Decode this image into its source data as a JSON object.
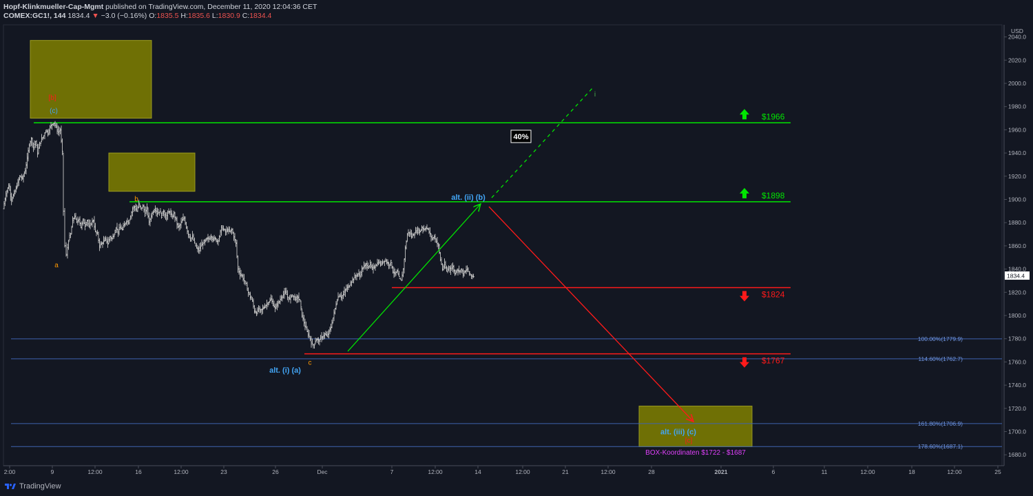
{
  "header": {
    "author": "Hopf-Klinkmueller-Cap-Mgmt",
    "published": "published on TradingView.com, December 11, 2020 12:04:36 CET",
    "symbol": "COMEX:GC1!, 144",
    "last": "1834.4",
    "change": "−3.0 (−0.16%)",
    "o_label": "O:",
    "o": "1835.5",
    "h_label": "H:",
    "h": "1835.6",
    "l_label": "L:",
    "l": "1830.9",
    "c_label": "C:",
    "c": "1834.4"
  },
  "footer": {
    "brand": "TradingView"
  },
  "colors": {
    "background": "#131722",
    "bar": "#c8c8c8",
    "green": "#4caf50",
    "bright_green": "#00e600",
    "red": "#ff1a1a",
    "box": "#808000",
    "blue_label": "#42a5f5",
    "orange": "#ff9800",
    "magenta": "#e040fb",
    "fib_line": "#3f63b0"
  },
  "chart_data": {
    "type": "ohlc",
    "currency": "USD",
    "last_price_label": "1834.4",
    "y_ticks": [
      1680,
      1700,
      1720,
      1740,
      1760,
      1780,
      1800,
      1820,
      1840,
      1860,
      1880,
      1900,
      1920,
      1940,
      1960,
      1980,
      2000,
      2020,
      2040
    ],
    "y_tick_labels": [
      "1680.0",
      "1700.0",
      "1720.0",
      "1740.0",
      "1760.0",
      "1780.0",
      "1800.0",
      "1820.0",
      "1840.0",
      "1860.0",
      "1880.0",
      "1900.0",
      "1920.0",
      "1940.0",
      "1960.0",
      "1980.0",
      "2000.0",
      "2020.0",
      "2040.0"
    ],
    "x_tick_labels": [
      "2:00",
      "9",
      "12:00",
      "16",
      "12:00",
      "23",
      "26",
      "Dec",
      "7",
      "12:00",
      "14",
      "12:00",
      "21",
      "12:00",
      "28",
      "2021",
      "6",
      "11",
      "12:00",
      "18",
      "12:00",
      "25"
    ],
    "price_path": [
      [
        0,
        1892
      ],
      [
        4,
        1905
      ],
      [
        8,
        1912
      ],
      [
        12,
        1900
      ],
      [
        16,
        1905
      ],
      [
        20,
        1912
      ],
      [
        24,
        1920
      ],
      [
        28,
        1918
      ],
      [
        32,
        1925
      ],
      [
        35,
        1935
      ],
      [
        38,
        1948
      ],
      [
        41,
        1952
      ],
      [
        44,
        1945
      ],
      [
        47,
        1950
      ],
      [
        50,
        1940
      ],
      [
        53,
        1948
      ],
      [
        56,
        1952
      ],
      [
        59,
        1955
      ],
      [
        62,
        1960
      ],
      [
        65,
        1957
      ],
      [
        68,
        1962
      ],
      [
        71,
        1965
      ],
      [
        74,
        1966
      ],
      [
        77,
        1962
      ],
      [
        80,
        1958
      ],
      [
        83,
        1960
      ],
      [
        86,
        1940
      ],
      [
        88,
        1890
      ],
      [
        90,
        1860
      ],
      [
        92,
        1852
      ],
      [
        95,
        1865
      ],
      [
        98,
        1870
      ],
      [
        101,
        1882
      ],
      [
        104,
        1886
      ],
      [
        107,
        1880
      ],
      [
        110,
        1884
      ],
      [
        113,
        1876
      ],
      [
        116,
        1882
      ],
      [
        119,
        1878
      ],
      [
        122,
        1882
      ],
      [
        125,
        1876
      ],
      [
        128,
        1880
      ],
      [
        131,
        1882
      ],
      [
        134,
        1872
      ],
      [
        137,
        1870
      ],
      [
        140,
        1860
      ],
      [
        143,
        1862
      ],
      [
        146,
        1864
      ],
      [
        149,
        1866
      ],
      [
        152,
        1862
      ],
      [
        155,
        1868
      ],
      [
        158,
        1866
      ],
      [
        161,
        1870
      ],
      [
        164,
        1876
      ],
      [
        167,
        1872
      ],
      [
        170,
        1876
      ],
      [
        173,
        1874
      ],
      [
        176,
        1878
      ],
      [
        179,
        1882
      ],
      [
        182,
        1880
      ],
      [
        185,
        1886
      ],
      [
        188,
        1892
      ],
      [
        191,
        1894
      ],
      [
        194,
        1890
      ],
      [
        197,
        1896
      ],
      [
        200,
        1892
      ],
      [
        203,
        1894
      ],
      [
        206,
        1888
      ],
      [
        209,
        1892
      ],
      [
        212,
        1880
      ],
      [
        215,
        1886
      ],
      [
        218,
        1890
      ],
      [
        221,
        1892
      ],
      [
        224,
        1888
      ],
      [
        227,
        1890
      ],
      [
        230,
        1886
      ],
      [
        233,
        1890
      ],
      [
        236,
        1884
      ],
      [
        239,
        1888
      ],
      [
        242,
        1890
      ],
      [
        245,
        1884
      ],
      [
        248,
        1888
      ],
      [
        251,
        1882
      ],
      [
        254,
        1876
      ],
      [
        257,
        1878
      ],
      [
        260,
        1882
      ],
      [
        263,
        1884
      ],
      [
        266,
        1876
      ],
      [
        269,
        1870
      ],
      [
        272,
        1866
      ],
      [
        275,
        1868
      ],
      [
        278,
        1862
      ],
      [
        281,
        1858
      ],
      [
        284,
        1856
      ],
      [
        287,
        1860
      ],
      [
        290,
        1862
      ],
      [
        293,
        1864
      ],
      [
        296,
        1866
      ],
      [
        299,
        1866
      ],
      [
        302,
        1868
      ],
      [
        305,
        1866
      ],
      [
        308,
        1866
      ],
      [
        311,
        1864
      ],
      [
        314,
        1868
      ],
      [
        317,
        1876
      ],
      [
        320,
        1874
      ],
      [
        323,
        1872
      ],
      [
        326,
        1874
      ],
      [
        329,
        1872
      ],
      [
        332,
        1874
      ],
      [
        335,
        1868
      ],
      [
        338,
        1862
      ],
      [
        341,
        1840
      ],
      [
        344,
        1836
      ],
      [
        347,
        1834
      ],
      [
        350,
        1830
      ],
      [
        353,
        1826
      ],
      [
        356,
        1820
      ],
      [
        359,
        1816
      ],
      [
        362,
        1812
      ],
      [
        365,
        1804
      ],
      [
        368,
        1802
      ],
      [
        371,
        1806
      ],
      [
        374,
        1804
      ],
      [
        377,
        1806
      ],
      [
        380,
        1808
      ],
      [
        383,
        1810
      ],
      [
        386,
        1812
      ],
      [
        389,
        1814
      ],
      [
        392,
        1810
      ],
      [
        395,
        1806
      ],
      [
        398,
        1810
      ],
      [
        401,
        1812
      ],
      [
        404,
        1816
      ],
      [
        407,
        1818
      ],
      [
        410,
        1820
      ],
      [
        413,
        1816
      ],
      [
        416,
        1814
      ],
      [
        419,
        1818
      ],
      [
        422,
        1816
      ],
      [
        425,
        1814
      ],
      [
        428,
        1816
      ],
      [
        431,
        1812
      ],
      [
        434,
        1800
      ],
      [
        437,
        1794
      ],
      [
        440,
        1788
      ],
      [
        443,
        1784
      ],
      [
        446,
        1780
      ],
      [
        449,
        1774
      ],
      [
        452,
        1776
      ],
      [
        455,
        1780
      ],
      [
        458,
        1778
      ],
      [
        461,
        1780
      ],
      [
        464,
        1782
      ],
      [
        467,
        1784
      ],
      [
        470,
        1782
      ],
      [
        473,
        1786
      ],
      [
        476,
        1790
      ],
      [
        479,
        1798
      ],
      [
        482,
        1806
      ],
      [
        485,
        1814
      ],
      [
        488,
        1818
      ],
      [
        491,
        1816
      ],
      [
        494,
        1818
      ],
      [
        497,
        1822
      ],
      [
        500,
        1824
      ],
      [
        503,
        1826
      ],
      [
        506,
        1830
      ],
      [
        509,
        1832
      ],
      [
        512,
        1834
      ],
      [
        515,
        1836
      ],
      [
        518,
        1834
      ],
      [
        521,
        1840
      ],
      [
        524,
        1842
      ],
      [
        527,
        1844
      ],
      [
        530,
        1842
      ],
      [
        533,
        1844
      ],
      [
        536,
        1840
      ],
      [
        539,
        1842
      ],
      [
        542,
        1844
      ],
      [
        545,
        1846
      ],
      [
        548,
        1844
      ],
      [
        551,
        1846
      ],
      [
        554,
        1848
      ],
      [
        557,
        1846
      ],
      [
        560,
        1844
      ],
      [
        563,
        1846
      ],
      [
        566,
        1838
      ],
      [
        569,
        1836
      ],
      [
        572,
        1838
      ],
      [
        575,
        1832
      ],
      [
        578,
        1830
      ],
      [
        581,
        1840
      ],
      [
        584,
        1858
      ],
      [
        587,
        1870
      ],
      [
        590,
        1872
      ],
      [
        593,
        1868
      ],
      [
        596,
        1870
      ],
      [
        599,
        1872
      ],
      [
        602,
        1874
      ],
      [
        605,
        1872
      ],
      [
        608,
        1876
      ],
      [
        611,
        1874
      ],
      [
        614,
        1876
      ],
      [
        617,
        1874
      ],
      [
        620,
        1870
      ],
      [
        623,
        1866
      ],
      [
        626,
        1868
      ],
      [
        629,
        1864
      ],
      [
        632,
        1860
      ],
      [
        635,
        1848
      ],
      [
        638,
        1840
      ],
      [
        641,
        1844
      ],
      [
        644,
        1838
      ],
      [
        647,
        1842
      ],
      [
        650,
        1840
      ],
      [
        653,
        1842
      ],
      [
        656,
        1836
      ],
      [
        659,
        1840
      ],
      [
        662,
        1838
      ],
      [
        665,
        1840
      ],
      [
        668,
        1836
      ],
      [
        671,
        1838
      ],
      [
        674,
        1840
      ],
      [
        677,
        1836
      ],
      [
        680,
        1834
      ],
      [
        683,
        1834
      ]
    ],
    "horizontal_levels": [
      {
        "label": "$1966",
        "value": 1966,
        "color": "#4caf50",
        "arrow": "up"
      },
      {
        "label": "$1898",
        "value": 1898,
        "color": "#4caf50",
        "arrow": "up"
      },
      {
        "label": "$1824",
        "value": 1824,
        "color": "#ff1a1a",
        "arrow": "down"
      },
      {
        "label": "$1767",
        "value": 1767,
        "color": "#ff1a1a",
        "arrow": "down"
      }
    ],
    "fib_levels": [
      {
        "label": "100.00%(1779.9)",
        "value": 1779.9
      },
      {
        "label": "114.60%(1762.7)",
        "value": 1762.7
      },
      {
        "label": "161.80%(1706.9)",
        "value": 1706.9
      },
      {
        "label": "178.60%(1687.1)",
        "value": 1687.1
      }
    ],
    "boxes": [
      {
        "y_top": 2037,
        "y_bottom": 1970,
        "color": "#808000"
      },
      {
        "y_top": 1940,
        "y_bottom": 1907,
        "color": "#808000"
      },
      {
        "y_top": 1722,
        "y_bottom": 1687,
        "color": "#808000"
      }
    ],
    "wave_labels": [
      {
        "text": "[b]",
        "value": 1988,
        "color": "#ff1a1a"
      },
      {
        "text": "(c)",
        "value": 1977,
        "color": "#42a5f5"
      },
      {
        "text": "a",
        "value": 1844,
        "color": "#ff9800"
      },
      {
        "text": "b",
        "value": 1901,
        "color": "#ff9800"
      },
      {
        "text": "c",
        "value": 1760,
        "color": "#ff9800"
      },
      {
        "text": "alt. (i) (a)",
        "value": 1753,
        "color": "#42a5f5"
      },
      {
        "text": "alt. (ii) (b)",
        "value": 1902,
        "color": "#42a5f5"
      },
      {
        "text": "alt. (iii) (c)",
        "value": 1700,
        "color": "#42a5f5"
      },
      {
        "text": "[c]",
        "value": 1693,
        "color": "#ff1a1a"
      },
      {
        "text": "i",
        "value": 1991,
        "color": "#4caf50"
      }
    ],
    "percent_badge": "40%",
    "box_note": "BOX-Koordinaten $1722 - $1687"
  }
}
